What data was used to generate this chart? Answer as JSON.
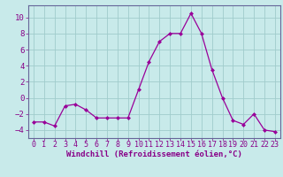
{
  "x": [
    0,
    1,
    2,
    3,
    4,
    5,
    6,
    7,
    8,
    9,
    10,
    11,
    12,
    13,
    14,
    15,
    16,
    17,
    18,
    19,
    20,
    21,
    22,
    23
  ],
  "y": [
    -3,
    -3,
    -3.5,
    -1,
    -0.8,
    -1.5,
    -2.5,
    -2.5,
    -2.5,
    -2.5,
    1,
    4.5,
    7,
    8,
    8,
    10.5,
    8,
    3.5,
    0,
    -2.8,
    -3.3,
    -2,
    -4,
    -4.2
  ],
  "line_color": "#990099",
  "marker": "D",
  "bg_color": "#c8eaea",
  "grid_color": "#a0cccc",
  "axis_color": "#880088",
  "xlabel": "Windchill (Refroidissement éolien,°C)",
  "ylim": [
    -5,
    11.5
  ],
  "xlim": [
    -0.5,
    23.5
  ],
  "yticks": [
    -4,
    -2,
    0,
    2,
    4,
    6,
    8,
    10
  ],
  "xticks": [
    0,
    1,
    2,
    3,
    4,
    5,
    6,
    7,
    8,
    9,
    10,
    11,
    12,
    13,
    14,
    15,
    16,
    17,
    18,
    19,
    20,
    21,
    22,
    23
  ],
  "label_fontsize": 6.5,
  "tick_fontsize": 6.0,
  "border_color": "#666699"
}
